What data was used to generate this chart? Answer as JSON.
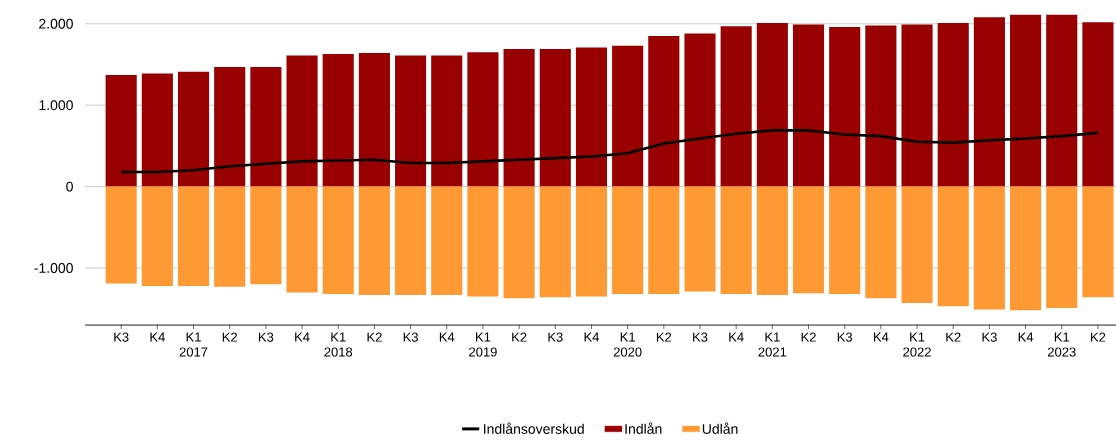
{
  "chart_data": {
    "type": "bar",
    "categories": [
      "K3",
      "K4",
      "K1 2017",
      "K2",
      "K3",
      "K4",
      "K1 2018",
      "K2",
      "K3",
      "K4",
      "K1 2019",
      "K2",
      "K3",
      "K4",
      "K1 2020",
      "K2",
      "K3",
      "K4",
      "K1 2021",
      "K2",
      "K3",
      "K4",
      "K1 2022",
      "K2",
      "K3",
      "K4",
      "K1 2023",
      "K2"
    ],
    "series": [
      {
        "name": "Indlånsoverskud",
        "type": "line",
        "color": "#000000",
        "values": [
          180,
          180,
          200,
          250,
          280,
          310,
          320,
          330,
          290,
          290,
          310,
          330,
          350,
          370,
          410,
          530,
          590,
          650,
          690,
          690,
          640,
          620,
          550,
          540,
          570,
          590,
          620,
          660
        ]
      },
      {
        "name": "Indlån",
        "color": "#990000",
        "values": [
          1370,
          1390,
          1410,
          1470,
          1470,
          1610,
          1630,
          1640,
          1610,
          1610,
          1650,
          1690,
          1690,
          1710,
          1730,
          1850,
          1880,
          1970,
          2010,
          1990,
          1960,
          1980,
          1990,
          2010,
          2080,
          2110,
          2110,
          2020
        ]
      },
      {
        "name": "Udlån",
        "color": "#ff9933",
        "values": [
          -1190,
          -1220,
          -1220,
          -1230,
          -1200,
          -1300,
          -1320,
          -1330,
          -1330,
          -1330,
          -1350,
          -1370,
          -1360,
          -1350,
          -1320,
          -1320,
          -1290,
          -1320,
          -1330,
          -1310,
          -1320,
          -1370,
          -1430,
          -1470,
          -1510,
          -1520,
          -1490,
          -1360
        ]
      }
    ],
    "ylim": [
      -1700,
      2120
    ],
    "yticks": [
      {
        "value": -1000,
        "label": "-1.000"
      },
      0,
      {
        "value": 1000,
        "label": "1.000"
      },
      {
        "value": 2000,
        "label": "2.000"
      }
    ],
    "grid": "y",
    "stacked": true,
    "legend": "bottom",
    "marker": "none",
    "line_style": "solid"
  }
}
